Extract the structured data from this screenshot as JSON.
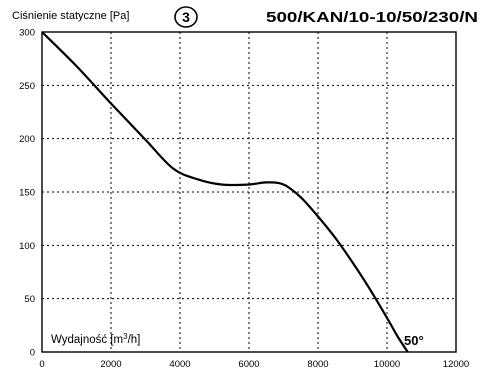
{
  "chart_data": {
    "type": "line",
    "ylabel": "Ciśnienie statyczne [Pa]",
    "xlabel": "Wydajność [m3/h]",
    "xlabel_main": "Wydajność [m",
    "xlabel_sup": "3",
    "xlabel_end": "/h]",
    "badge": "3",
    "model_code": "500/KAN/10-10/50/230/N",
    "grid": true,
    "xlim": [
      0,
      12000
    ],
    "ylim": [
      0,
      300
    ],
    "x_ticks": [
      0,
      2000,
      4000,
      6000,
      8000,
      10000,
      12000
    ],
    "y_ticks": [
      0,
      50,
      100,
      150,
      200,
      250,
      300
    ],
    "series": [
      {
        "label": "50°",
        "x": [
          0,
          1000,
          2000,
          3000,
          3800,
          4500,
          5200,
          6000,
          6500,
          7000,
          7500,
          8000,
          8500,
          9000,
          9500,
          10000,
          10300,
          10600
        ],
        "y": [
          300,
          268,
          233,
          199,
          172,
          162,
          157,
          157,
          159,
          157,
          145,
          127,
          107,
          84,
          59,
          32,
          15,
          0
        ]
      }
    ]
  }
}
